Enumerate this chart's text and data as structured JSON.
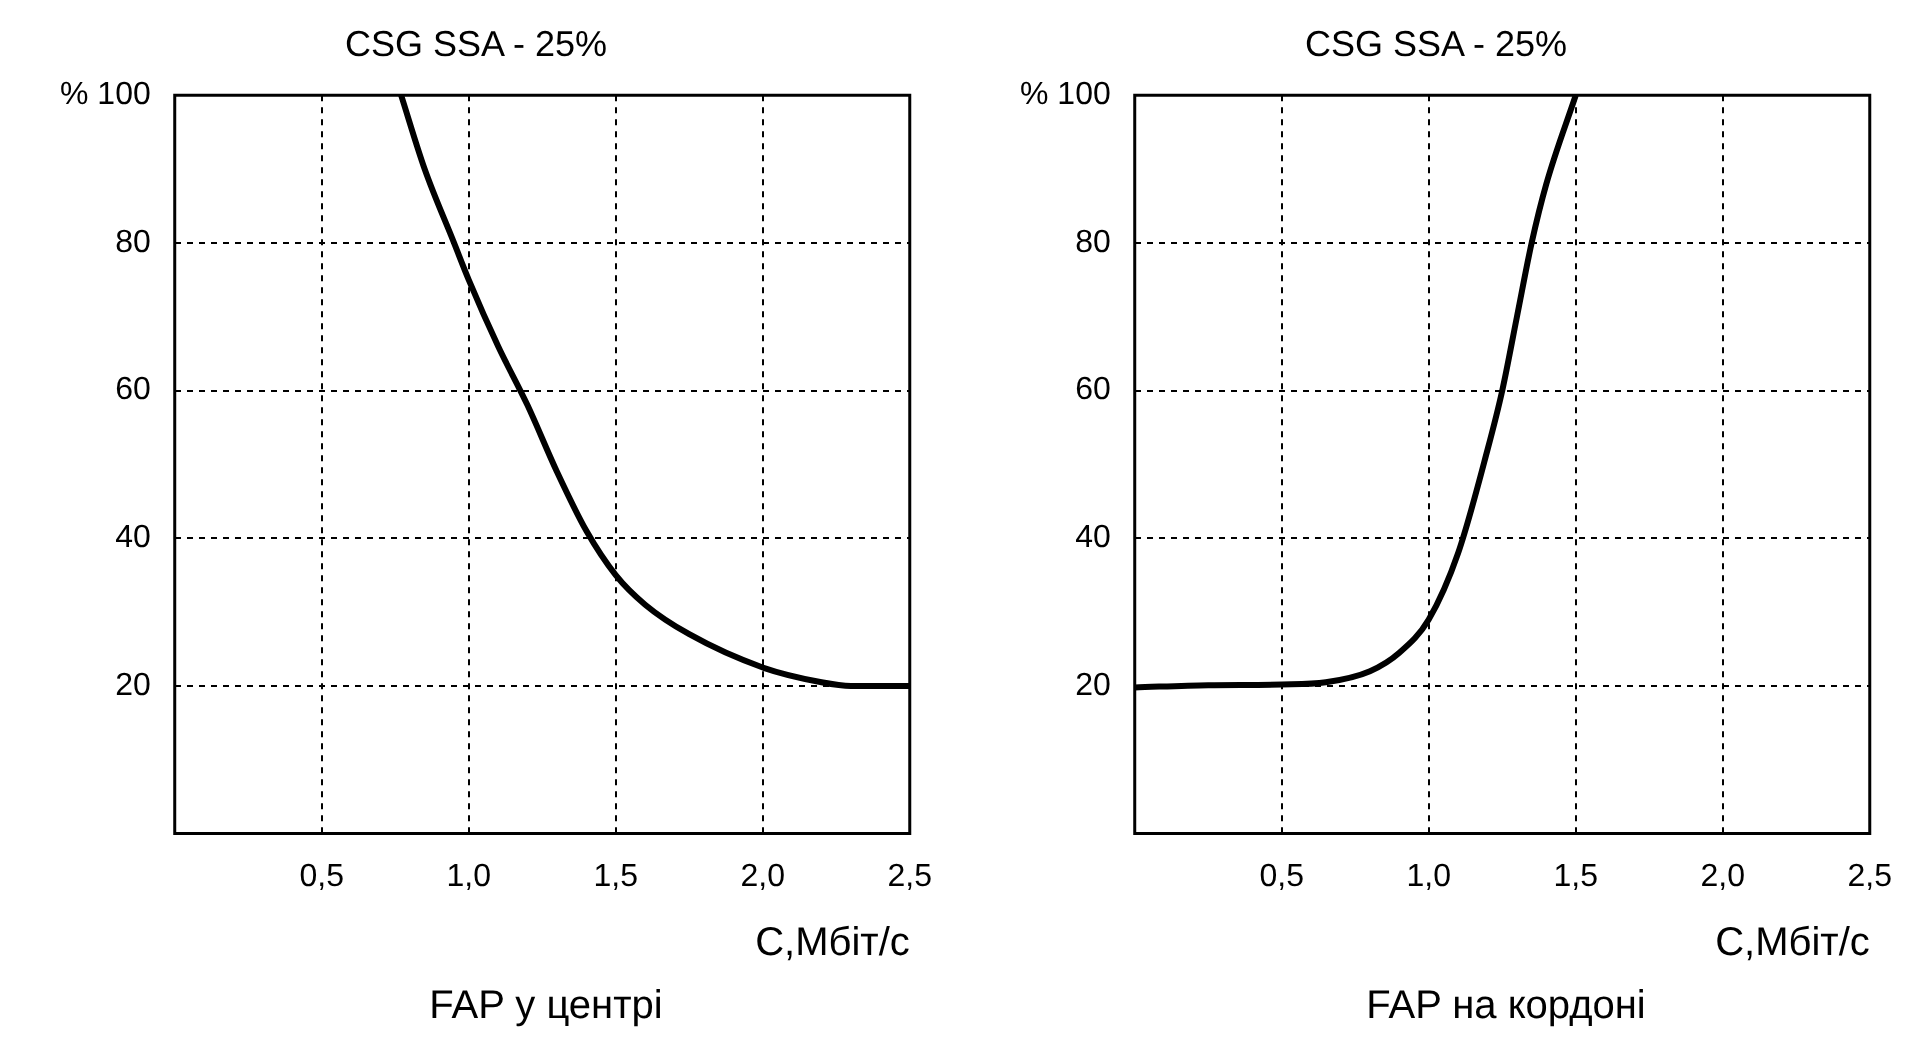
{
  "chart_data": [
    {
      "type": "line",
      "title": "CSG SSA - 25%",
      "xlabel": "C,Мбіт/с",
      "annotations": [
        "FAP у центрі"
      ],
      "xlim": [
        0,
        2.5
      ],
      "ylim": [
        0,
        100
      ],
      "xticks": [
        {
          "value": 0.5,
          "label": "0,5"
        },
        {
          "value": 1,
          "label": "1,0"
        },
        {
          "value": 1.5,
          "label": "1,5"
        },
        {
          "value": 2,
          "label": "2,0"
        },
        {
          "value": 2.5,
          "label": "2,5"
        }
      ],
      "yticks": [
        20,
        40,
        60,
        80,
        {
          "value": 100,
          "label": "% 100"
        }
      ],
      "grid": true,
      "marker": "none",
      "color": "#000000",
      "x": [
        0.77,
        0.85,
        0.95,
        1.0,
        1.1,
        1.2,
        1.3,
        1.4,
        1.5,
        1.6,
        1.75,
        2.0,
        2.2,
        2.3,
        2.5
      ],
      "values": [
        100,
        90,
        80,
        75,
        66,
        58,
        49,
        41,
        35,
        31,
        27,
        22.5,
        20.5,
        20,
        20
      ]
    },
    {
      "type": "line",
      "title": "CSG SSA - 25%",
      "xlabel": "C,Мбіт/с",
      "annotations": [
        "FAP на кордоні"
      ],
      "xlim": [
        0,
        2.5
      ],
      "ylim": [
        0,
        100
      ],
      "xticks": [
        {
          "value": 0.5,
          "label": "0,5"
        },
        {
          "value": 1,
          "label": "1,0"
        },
        {
          "value": 1.5,
          "label": "1,5"
        },
        {
          "value": 2,
          "label": "2,0"
        },
        {
          "value": 2.5,
          "label": "2,5"
        }
      ],
      "yticks": [
        20,
        40,
        60,
        80,
        {
          "value": 100,
          "label": "% 100"
        }
      ],
      "grid": true,
      "marker": "none",
      "color": "#000000",
      "x": [
        0,
        0.25,
        0.5,
        0.65,
        0.8,
        0.9,
        1.0,
        1.1,
        1.2,
        1.25,
        1.3,
        1.35,
        1.4,
        1.5
      ],
      "values": [
        19.8,
        20.1,
        20.2,
        20.5,
        22,
        24.5,
        29,
        38,
        52,
        60,
        70,
        80,
        88,
        100
      ]
    }
  ]
}
